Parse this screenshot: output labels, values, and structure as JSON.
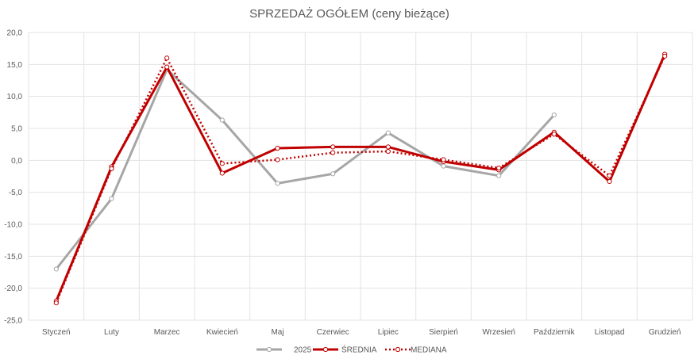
{
  "chart_data": {
    "type": "line",
    "title": "SPRZEDAŻ OGÓŁEM (ceny bieżące)",
    "xlabel": "",
    "ylabel": "",
    "categories": [
      "Styczeń",
      "Luty",
      "Marzec",
      "Kwiecień",
      "Maj",
      "Czerwiec",
      "Lipiec",
      "Sierpień",
      "Wrzesień",
      "Październik",
      "Listopad",
      "Grudzień"
    ],
    "ylim": [
      -25,
      20
    ],
    "yticks": [
      "20,0",
      "15,0",
      "10,0",
      "5,0",
      "0,0",
      "-5,0",
      "-10,0",
      "-15,0",
      "-20,0",
      "-25,0"
    ],
    "grid": true,
    "legend_position": "bottom",
    "series": [
      {
        "name": "2025",
        "color": "#a6a6a6",
        "style": "solid",
        "values": [
          -17.0,
          -6.0,
          14.2,
          6.3,
          -3.6,
          -2.1,
          4.3,
          -0.9,
          -2.4,
          7.1,
          null,
          null
        ]
      },
      {
        "name": "ŚREDNIA",
        "color": "#c00000",
        "style": "solid",
        "values": [
          -22.0,
          -1.0,
          14.6,
          -2.0,
          1.9,
          2.1,
          2.1,
          -0.2,
          -1.5,
          4.4,
          -3.3,
          16.6
        ]
      },
      {
        "name": "MEDIANA",
        "color": "#c00000",
        "style": "dotted",
        "values": [
          -22.3,
          -1.3,
          16.0,
          -0.5,
          0.1,
          1.2,
          1.4,
          0.1,
          -1.2,
          4.1,
          -2.4,
          16.3
        ]
      }
    ]
  }
}
